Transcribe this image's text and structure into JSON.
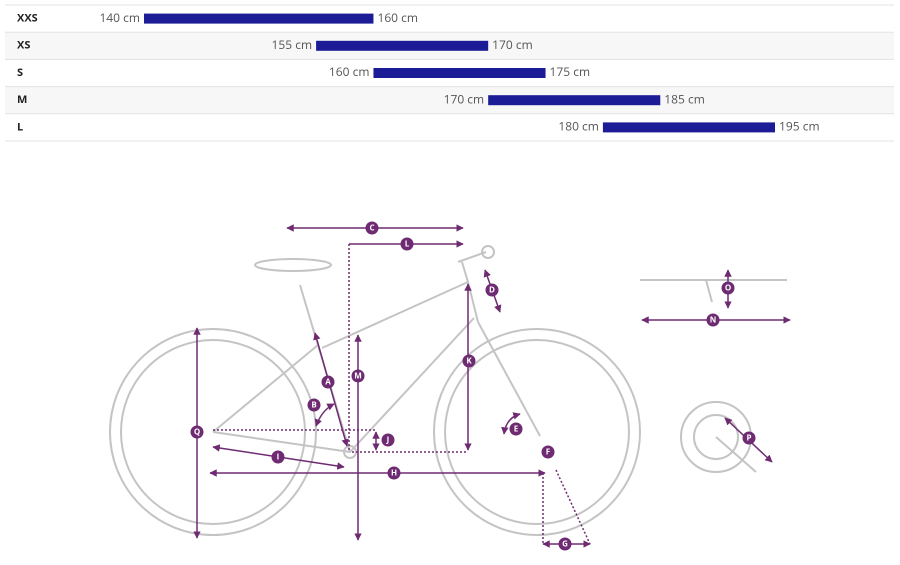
{
  "chart_data": {
    "type": "range-bar",
    "categories": [
      "XXS",
      "XS",
      "S",
      "M",
      "L"
    ],
    "color": "#1c1c96",
    "series": [
      {
        "values": [
          140,
          155,
          160,
          170,
          180
        ],
        "value_labels": [
          "140 cm",
          "155 cm",
          "160 cm",
          "170 cm",
          "180 cm"
        ]
      },
      {
        "values": [
          160,
          170,
          175,
          185,
          195
        ],
        "value_labels": [
          "160 cm",
          "170 cm",
          "175 cm",
          "185 cm",
          "195 cm"
        ]
      }
    ]
  },
  "diagram": {
    "labels": [
      "C",
      "L",
      "D",
      "K",
      "M",
      "A",
      "B",
      "Q",
      "J",
      "E",
      "F",
      "I",
      "H",
      "G",
      "O",
      "N",
      "P"
    ]
  }
}
